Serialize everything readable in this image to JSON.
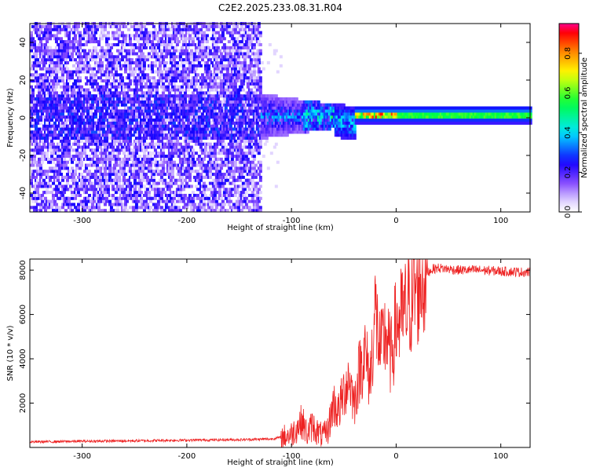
{
  "title": "C2E2.2025.233.08.31.R04",
  "chart_data": [
    {
      "type": "heatmap",
      "xlabel": "Height of straight line (km)",
      "ylabel": "Frequency (Hz)",
      "xlim": [
        -350,
        128
      ],
      "ylim": [
        -50,
        50
      ],
      "xticks": [
        -300,
        -200,
        -100,
        0,
        100
      ],
      "xtick_labels": [
        "-300",
        "-200",
        "-100",
        "0",
        "100"
      ],
      "yticks": [
        -40,
        -20,
        0,
        20,
        40
      ],
      "ytick_labels": [
        "-40",
        "-20",
        "0",
        "20",
        "40"
      ],
      "colorbar": {
        "label": "Normalized spectral amplitude",
        "range": [
          0.0,
          0.95
        ],
        "ticks": [
          0.0,
          0.2,
          0.4,
          0.6,
          0.8
        ],
        "tick_labels": [
          "0.0",
          "0.2",
          "0.4",
          "0.6",
          "0.8"
        ],
        "colors": [
          "#ff00ff",
          "#ffffff",
          "#dcd0ff",
          "#7a3cff",
          "#0000ff",
          "#00ffff",
          "#00ff00",
          "#ffff00",
          "#ff8800",
          "#ff0000",
          "#ff0080"
        ]
      },
      "regions": [
        {
          "x": [
            -350,
            -130
          ],
          "freq": [
            -50,
            50
          ],
          "amplitude": 0.15,
          "desc": "noise"
        },
        {
          "x": [
            -130,
            -60
          ],
          "freq": [
            -10,
            10
          ],
          "amplitude": 0.3
        },
        {
          "x": [
            -80,
            -40
          ],
          "freq": [
            -5,
            5
          ],
          "amplitude": 0.45
        },
        {
          "x": [
            -40,
            128
          ],
          "freq": [
            -2,
            2
          ],
          "amplitude": 0.55
        }
      ],
      "grid": false
    },
    {
      "type": "line",
      "xlabel": "Height of straight line (km)",
      "ylabel": "SNR (10 * v/v)",
      "xlim": [
        -350,
        128
      ],
      "ylim": [
        0,
        8500
      ],
      "xticks": [
        -300,
        -200,
        -100,
        0,
        100
      ],
      "xtick_labels": [
        "-300",
        "-200",
        "-100",
        "0",
        "100"
      ],
      "yticks": [
        2000,
        4000,
        6000,
        8000
      ],
      "ytick_labels": [
        "2000",
        "4000",
        "6000",
        "8000"
      ],
      "color": "#ee2222",
      "grid": false,
      "series": [
        {
          "x": [
            -350,
            -300,
            -250,
            -200,
            -150,
            -120,
            -110,
            -100,
            -95,
            -90,
            -85,
            -80,
            -75,
            -70,
            -65,
            -60,
            -55,
            -50,
            -45,
            -40,
            -35,
            -30,
            -25,
            -20,
            -15,
            -10,
            -5,
            0,
            5,
            10,
            15,
            20,
            25,
            30,
            35,
            40,
            50,
            60,
            80,
            100,
            128
          ],
          "y": [
            250,
            280,
            300,
            330,
            350,
            380,
            450,
            600,
            900,
            1200,
            600,
            1000,
            700,
            500,
            800,
            2000,
            1600,
            2500,
            3200,
            2000,
            3500,
            4300,
            3000,
            6200,
            4200,
            5200,
            4000,
            5600,
            5800,
            6200,
            6800,
            7300,
            7700,
            7900,
            8050,
            8100,
            8050,
            8000,
            8000,
            7950,
            7900
          ]
        }
      ]
    }
  ]
}
